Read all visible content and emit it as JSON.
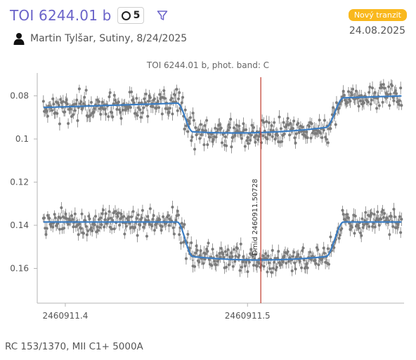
{
  "header": {
    "title": "TOI 6244.01 b",
    "observation_count": "5",
    "observer_line": "Martin Tylšar, Sutiny, 8/24/2025",
    "badge": "Nový tranzit",
    "date": "24.08.2025",
    "icons": [
      "circle-icon",
      "filter-icon",
      "user-icon"
    ],
    "badge_color": "#f9b81d",
    "title_color": "#6a63c9"
  },
  "footer": {
    "equipment": "RC 153/1370, MII C1+ 5000A"
  },
  "chart_data": {
    "type": "scatter",
    "title": "TOI 6244.01 b, phot. band: C",
    "x_tick_labels": [
      "2460911.4",
      "2460911.5"
    ],
    "x_ticks": [
      2460911.4,
      2460911.5
    ],
    "xlim": [
      2460911.3846,
      2460911.5859
    ],
    "y_tick_labels": [
      "0.08",
      "0.1",
      "0.12",
      "0.14",
      "0.16"
    ],
    "y_ticks": [
      0.08,
      0.1,
      0.12,
      0.14,
      0.16
    ],
    "ylim": [
      0.1761,
      0.0694
    ],
    "y_inverted": true,
    "grid": false,
    "marker_color": "#7b7b7b",
    "model_color": "#3a7dc4",
    "midpoint_color": "#c0392b",
    "midpoint_label": "Dmid 2460911.50728",
    "midpoint_x": 2460911.50728,
    "transit": {
      "ingress_start": 2460911.4615,
      "ingress_end": 2460911.47,
      "egress_start": 2460911.543,
      "egress_end": 2460911.5527
    },
    "series": [
      {
        "model_baseline_start": 0.0855,
        "model_baseline_end": 0.08,
        "model_depth": 0.0135,
        "scatter": 0.0075
      },
      {
        "model_baseline_start": 0.1385,
        "model_baseline_end": 0.1385,
        "model_depth": 0.016,
        "scatter": 0.0075
      }
    ]
  }
}
